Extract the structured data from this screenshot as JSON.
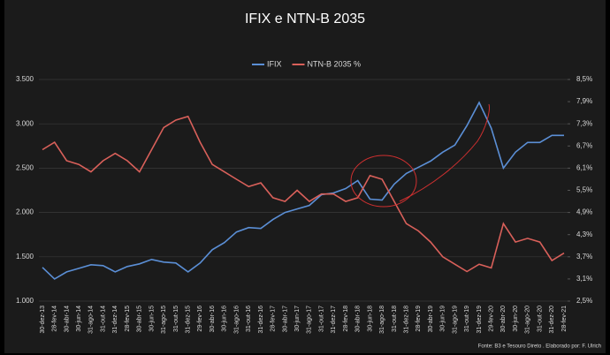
{
  "chart_data": {
    "type": "line",
    "title": "IFIX e NTN-B 2035",
    "categories": [
      "30-dez-13",
      "28-fev-14",
      "30-abr-14",
      "30-jun-14",
      "31-ago-14",
      "31-out-14",
      "31-dez-14",
      "28-fev-15",
      "30-abr-15",
      "30-jun-15",
      "31-ago-15",
      "31-out-15",
      "31-dez-15",
      "29-fev-16",
      "30-abr-16",
      "30-jun-16",
      "31-ago-16",
      "31-out-16",
      "31-dez-16",
      "28-fev-17",
      "30-abr-17",
      "30-jun-17",
      "31-ago-17",
      "31-out-17",
      "31-dez-17",
      "28-fev-18",
      "30-abr-18",
      "30-jun-18",
      "31-ago-18",
      "31-out-18",
      "31-dez-18",
      "28-fev-19",
      "30-abr-19",
      "30-jun-19",
      "31-ago-19",
      "31-out-19",
      "31-dez-19",
      "29-fev-20",
      "30-abr-20",
      "30-jun-20",
      "31-ago-20",
      "31-out-20",
      "31-dez-20",
      "28-fev-21"
    ],
    "series": [
      {
        "name": "IFIX",
        "color": "#5b8fd6",
        "values": [
          1380,
          1250,
          1330,
          1370,
          1410,
          1400,
          1330,
          1390,
          1420,
          1470,
          1440,
          1430,
          1330,
          1430,
          1580,
          1660,
          1780,
          1830,
          1820,
          1920,
          2000,
          2040,
          2080,
          2200,
          2220,
          2270,
          2360,
          2150,
          2140,
          2320,
          2440,
          2510,
          2580,
          2680,
          2760,
          2980,
          3240,
          2950,
          2500,
          2680,
          2790,
          2790,
          2870,
          2870
        ]
      },
      {
        "name": "NTN-B 2035 %",
        "color": "#d9605a",
        "axis": "y2",
        "values": [
          6.6,
          6.8,
          6.3,
          6.2,
          6.0,
          6.3,
          6.5,
          6.3,
          6.0,
          6.6,
          7.2,
          7.4,
          7.5,
          6.8,
          6.2,
          6.0,
          5.8,
          5.6,
          5.7,
          5.3,
          5.2,
          5.5,
          5.2,
          5.4,
          5.4,
          5.2,
          5.3,
          5.9,
          5.8,
          5.2,
          4.6,
          4.4,
          4.1,
          3.7,
          3.5,
          3.3,
          3.5,
          3.4,
          4.6,
          4.1,
          4.2,
          4.1,
          3.6,
          3.8
        ]
      }
    ],
    "ylim": [
      1000,
      3500
    ],
    "yticks": [
      {
        "value": 1000,
        "label": "1.000"
      },
      {
        "value": 1500,
        "label": "1.500"
      },
      {
        "value": 2000,
        "label": "2.000"
      },
      {
        "value": 2500,
        "label": "2.500"
      },
      {
        "value": 3000,
        "label": "3.000"
      },
      {
        "value": 3500,
        "label": "3.500"
      }
    ],
    "y2lim": [
      2.5,
      8.5
    ],
    "y2ticks": [
      {
        "value": 2.5,
        "label": "2,5%"
      },
      {
        "value": 3.1,
        "label": "3,1%"
      },
      {
        "value": 3.7,
        "label": "3,7%"
      },
      {
        "value": 4.3,
        "label": "4,3%"
      },
      {
        "value": 4.9,
        "label": "4,9%"
      },
      {
        "value": 5.5,
        "label": "5,5%"
      },
      {
        "value": 6.1,
        "label": "6,1%"
      },
      {
        "value": 6.7,
        "label": "6,7%"
      },
      {
        "value": 7.3,
        "label": "7,3%"
      },
      {
        "value": 7.9,
        "label": "7,9%"
      },
      {
        "value": 8.5,
        "label": "8,5%"
      }
    ],
    "grid": true,
    "legend": "top",
    "source": "Fonte: B3 e Tesouro Direto . Elaborado por: F. Ulrich"
  }
}
